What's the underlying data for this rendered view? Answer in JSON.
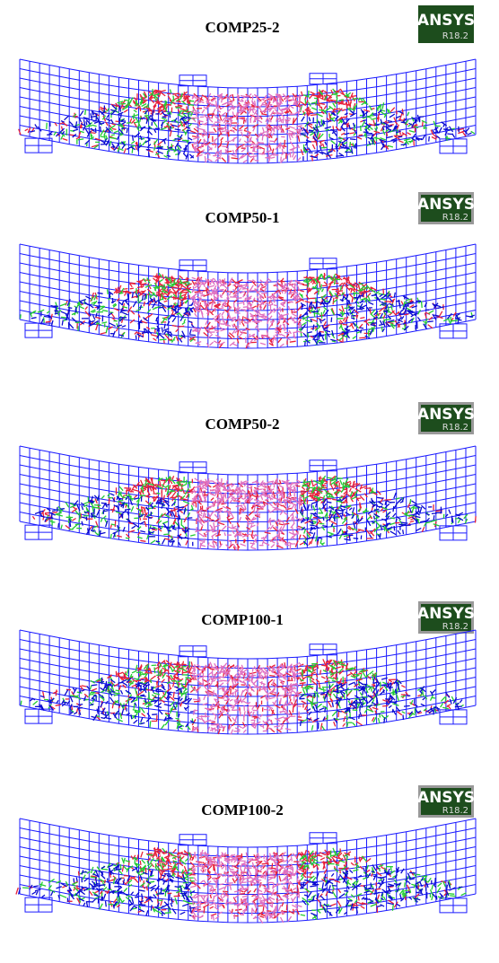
{
  "panels": [
    {
      "title": "COMP25-2",
      "badge": {
        "brand": "ANSYS",
        "version": "R18.2"
      }
    },
    {
      "title": "COMP50-1",
      "badge": {
        "brand": "ANSYS",
        "version": "R18.2"
      }
    },
    {
      "title": "COMP50-2",
      "badge": {
        "brand": "ANSYS",
        "version": "R18.2"
      }
    },
    {
      "title": "COMP100-1",
      "badge": {
        "brand": "ANSYS",
        "version": "R18.2"
      }
    },
    {
      "title": "COMP100-2",
      "badge": {
        "brand": "ANSYS",
        "version": "R18.2"
      }
    }
  ]
}
